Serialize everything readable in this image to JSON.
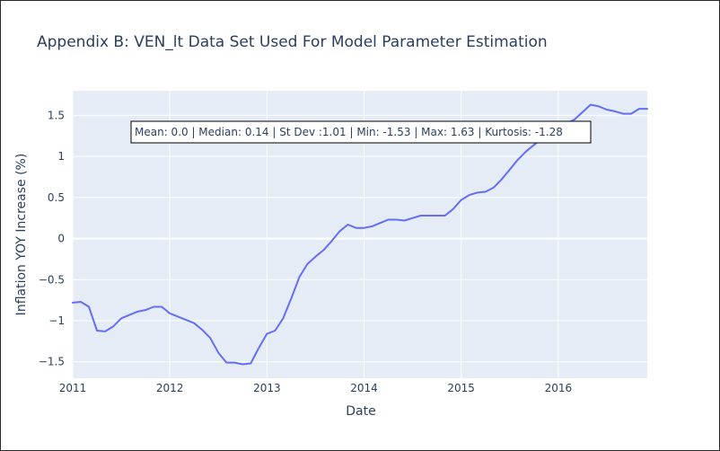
{
  "chart_data": {
    "type": "line",
    "title": "Appendix B: VEN_lt Data Set Used For Model Parameter Estimation",
    "xlabel": "Date",
    "ylabel": "Inflation YOY Increase (%)",
    "xlim": [
      "2011-01-01",
      "2016-12-01"
    ],
    "ylim": [
      -1.7,
      1.8
    ],
    "grid": true,
    "x_ticks": [
      {
        "value": "2011-01-01",
        "label": "2011"
      },
      {
        "value": "2012-01-01",
        "label": "2012"
      },
      {
        "value": "2013-01-01",
        "label": "2013"
      },
      {
        "value": "2014-01-01",
        "label": "2014"
      },
      {
        "value": "2015-01-01",
        "label": "2015"
      },
      {
        "value": "2016-01-01",
        "label": "2016"
      }
    ],
    "y_ticks": [
      {
        "value": 1.5,
        "label": "1.5"
      },
      {
        "value": 1,
        "label": "1"
      },
      {
        "value": 0.5,
        "label": "0.5"
      },
      {
        "value": 0,
        "label": "0"
      },
      {
        "value": -0.5,
        "label": "−0.5"
      },
      {
        "value": -1,
        "label": "−1"
      },
      {
        "value": -1.5,
        "label": "−1.5"
      }
    ],
    "series": [
      {
        "color": "#636efa",
        "x": [
          "2011-01",
          "2011-02",
          "2011-03",
          "2011-04",
          "2011-05",
          "2011-06",
          "2011-07",
          "2011-08",
          "2011-09",
          "2011-10",
          "2011-11",
          "2011-12",
          "2012-01",
          "2012-02",
          "2012-03",
          "2012-04",
          "2012-05",
          "2012-06",
          "2012-07",
          "2012-08",
          "2012-09",
          "2012-10",
          "2012-11",
          "2012-12",
          "2013-01",
          "2013-02",
          "2013-03",
          "2013-04",
          "2013-05",
          "2013-06",
          "2013-07",
          "2013-08",
          "2013-09",
          "2013-10",
          "2013-11",
          "2013-12",
          "2014-01",
          "2014-02",
          "2014-03",
          "2014-04",
          "2014-05",
          "2014-06",
          "2014-07",
          "2014-08",
          "2014-09",
          "2014-10",
          "2014-11",
          "2014-12",
          "2015-01",
          "2015-02",
          "2015-03",
          "2015-04",
          "2015-05",
          "2015-06",
          "2015-07",
          "2015-08",
          "2015-09",
          "2015-10",
          "2015-11",
          "2015-12",
          "2016-01",
          "2016-02",
          "2016-03",
          "2016-04",
          "2016-05",
          "2016-06",
          "2016-07",
          "2016-08",
          "2016-09",
          "2016-10",
          "2016-11",
          "2016-12"
        ],
        "y": [
          -0.78,
          -0.77,
          -0.83,
          -1.12,
          -1.13,
          -1.07,
          -0.97,
          -0.93,
          -0.89,
          -0.87,
          -0.83,
          -0.83,
          -0.91,
          -0.95,
          -0.99,
          -1.03,
          -1.11,
          -1.21,
          -1.39,
          -1.51,
          -1.51,
          -1.53,
          -1.52,
          -1.33,
          -1.16,
          -1.12,
          -0.97,
          -0.73,
          -0.47,
          -0.31,
          -0.22,
          -0.14,
          -0.03,
          0.09,
          0.17,
          0.13,
          0.13,
          0.15,
          0.19,
          0.23,
          0.23,
          0.22,
          0.25,
          0.28,
          0.28,
          0.28,
          0.28,
          0.36,
          0.47,
          0.53,
          0.56,
          0.57,
          0.62,
          0.72,
          0.84,
          0.96,
          1.06,
          1.14,
          1.22,
          1.29,
          1.36,
          1.4,
          1.45,
          1.54,
          1.63,
          1.61,
          1.57,
          1.55,
          1.52,
          1.52,
          1.58,
          1.58
        ]
      }
    ],
    "annotation": "Mean: 0.0 | Median: 0.14 | St Dev :1.01 | Min: -1.53 | Max: 1.63 | Kurtosis: -1.28"
  }
}
